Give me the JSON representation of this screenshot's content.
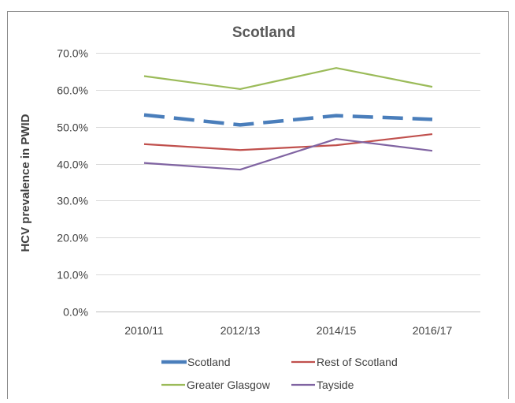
{
  "chart_data": {
    "type": "line",
    "title": "Scotland",
    "ylabel": "HCV prevalence in PWID",
    "xlabel": "",
    "categories": [
      "2010/11",
      "2012/13",
      "2014/15",
      "2016/17"
    ],
    "ylim": [
      0,
      70
    ],
    "yticks": [
      0,
      10,
      20,
      30,
      40,
      50,
      60,
      70
    ],
    "ytick_labels": [
      "0.0%",
      "10.0%",
      "20.0%",
      "30.0%",
      "40.0%",
      "50.0%",
      "60.0%",
      "70.0%"
    ],
    "grid": true,
    "legend_position": "bottom",
    "series": [
      {
        "name": "Scotland",
        "values": [
          53.2,
          50.5,
          53.0,
          52.0
        ],
        "color": "#4a7ebb",
        "style": "dashed"
      },
      {
        "name": "Rest of Scotland",
        "values": [
          45.3,
          43.7,
          45.0,
          48.0
        ],
        "color": "#c0504d",
        "style": "solid"
      },
      {
        "name": "Greater Glasgow",
        "values": [
          63.7,
          60.2,
          65.9,
          60.8
        ],
        "color": "#9bbb59",
        "style": "solid"
      },
      {
        "name": "Tayside",
        "values": [
          40.2,
          38.4,
          46.7,
          43.5
        ],
        "color": "#8064a2",
        "style": "solid"
      }
    ]
  }
}
